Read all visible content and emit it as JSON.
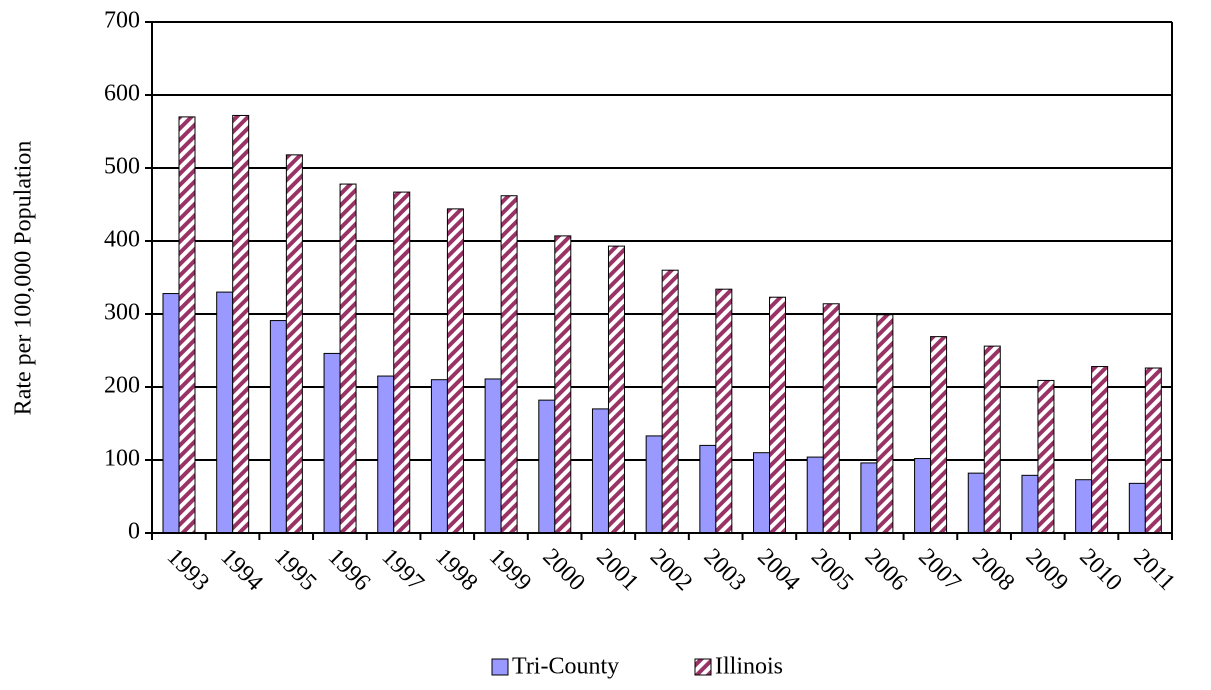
{
  "chart_data": {
    "type": "bar",
    "y_label": "Rate per 100,000 Population",
    "categories": [
      "1993",
      "1994",
      "1995",
      "1996",
      "1997",
      "1998",
      "1999",
      "2000",
      "2001",
      "2002",
      "2003",
      "2004",
      "2005",
      "2006",
      "2007",
      "2008",
      "2009",
      "2010",
      "2011"
    ],
    "series": [
      {
        "name": "Tri-County",
        "color": "#9999ff",
        "values": [
          328,
          330,
          291,
          246,
          215,
          210,
          211,
          182,
          170,
          133,
          120,
          110,
          104,
          96,
          102,
          82,
          79,
          73,
          68
        ]
      },
      {
        "name": "Illinois",
        "color": "#993366",
        "values": [
          570,
          572,
          518,
          478,
          467,
          444,
          462,
          407,
          393,
          360,
          334,
          323,
          314,
          299,
          269,
          256,
          209,
          228,
          226
        ]
      }
    ],
    "ylim": [
      0,
      700
    ],
    "yticks": [
      0,
      100,
      200,
      300,
      400,
      500,
      600,
      700
    ],
    "grid": true,
    "legend": "bottom"
  }
}
